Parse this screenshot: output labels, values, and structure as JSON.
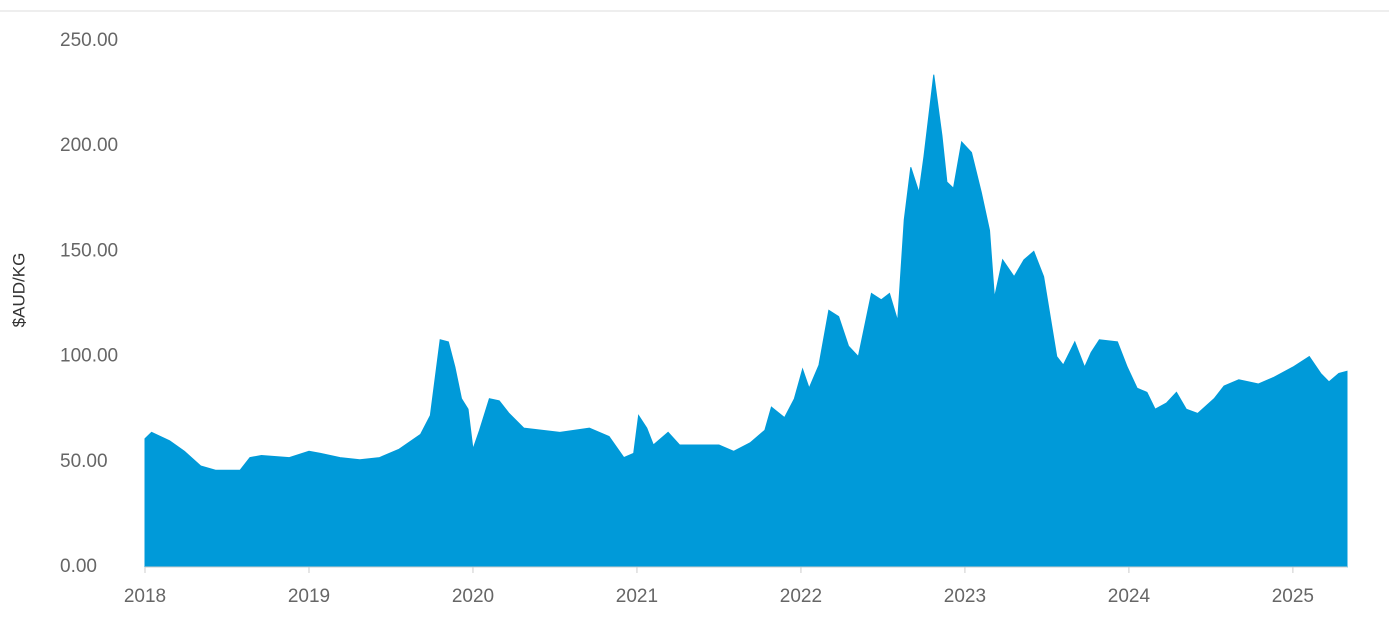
{
  "chart_data": {
    "type": "area",
    "y_label": "$AUD/KG",
    "color": "#009ad9",
    "grid": false,
    "xlim": [
      2018,
      2025.33
    ],
    "xticks": [
      2018,
      2019,
      2020,
      2021,
      2022,
      2023,
      2024,
      2025
    ],
    "ylim": [
      0,
      250
    ],
    "yticks": [
      {
        "value": 0,
        "label": "0.00"
      },
      {
        "value": 50,
        "label": "50.00"
      },
      {
        "value": 100,
        "label": "100.00"
      },
      {
        "value": 150,
        "label": "150.00"
      },
      {
        "value": 200,
        "label": "200.00"
      },
      {
        "value": 250,
        "label": "250.00"
      }
    ],
    "x": [
      2018.0,
      2018.04,
      2018.15,
      2018.24,
      2018.34,
      2018.43,
      2018.58,
      2018.64,
      2018.71,
      2018.88,
      2019.0,
      2019.07,
      2019.19,
      2019.31,
      2019.43,
      2019.55,
      2019.68,
      2019.74,
      2019.8,
      2019.85,
      2019.89,
      2019.93,
      2019.97,
      2020.0,
      2020.04,
      2020.1,
      2020.16,
      2020.22,
      2020.31,
      2020.53,
      2020.71,
      2020.83,
      2020.92,
      2020.98,
      2021.01,
      2021.06,
      2021.1,
      2021.19,
      2021.26,
      2021.38,
      2021.5,
      2021.59,
      2021.69,
      2021.78,
      2021.82,
      2021.9,
      2021.96,
      2022.01,
      2022.05,
      2022.11,
      2022.17,
      2022.23,
      2022.29,
      2022.35,
      2022.43,
      2022.49,
      2022.54,
      2022.59,
      2022.63,
      2022.67,
      2022.72,
      2022.75,
      2022.81,
      2022.86,
      2022.89,
      2022.93,
      2022.98,
      2023.04,
      2023.1,
      2023.15,
      2023.18,
      2023.23,
      2023.3,
      2023.36,
      2023.42,
      2023.48,
      2023.56,
      2023.6,
      2023.67,
      2023.73,
      2023.77,
      2023.82,
      2023.93,
      2023.99,
      2024.05,
      2024.11,
      2024.16,
      2024.23,
      2024.29,
      2024.35,
      2024.42,
      2024.52,
      2024.58,
      2024.67,
      2024.79,
      2024.88,
      2025.0,
      2025.1,
      2025.17,
      2025.22,
      2025.28,
      2025.33
    ],
    "values": [
      61,
      64,
      60,
      55,
      48,
      46,
      46,
      52,
      53,
      52,
      55,
      54,
      52,
      51,
      52,
      56,
      63,
      72,
      108,
      107,
      95,
      80,
      75,
      56,
      65,
      80,
      79,
      73,
      66,
      64,
      66,
      62,
      52,
      54,
      72,
      66,
      58,
      64,
      58,
      58,
      58,
      55,
      59,
      65,
      76,
      71,
      80,
      94,
      85,
      96,
      122,
      119,
      105,
      100,
      130,
      127,
      130,
      117,
      165,
      190,
      178,
      195,
      234,
      205,
      183,
      180,
      202,
      197,
      178,
      160,
      128,
      146,
      138,
      146,
      150,
      138,
      100,
      96,
      107,
      95,
      102,
      108,
      107,
      95,
      85,
      83,
      75,
      78,
      83,
      75,
      73,
      80,
      86,
      89,
      87,
      90,
      95,
      100,
      92,
      88,
      92,
      93
    ]
  }
}
